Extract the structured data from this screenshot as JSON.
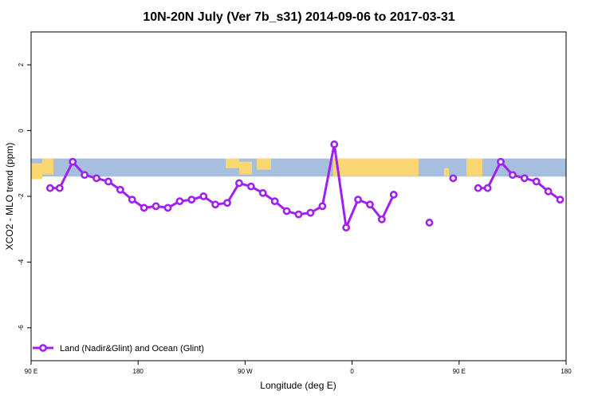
{
  "chart_data": {
    "type": "line",
    "title": "10N-20N July (Ver 7b_s31)   2014-09-06 to 2017-03-31",
    "xlabel": "Longitude (deg E)",
    "ylabel": "XCO2 - MLO trend (ppm)",
    "xlim": [
      90,
      450
    ],
    "ylim": [
      -7,
      3
    ],
    "x_ticks": [
      {
        "value": 90,
        "label": "90 E"
      },
      {
        "value": 180,
        "label": "180"
      },
      {
        "value": 270,
        "label": "90 W"
      },
      {
        "value": 360,
        "label": "0"
      },
      {
        "value": 450,
        "label": "90 E"
      },
      {
        "value": 540,
        "label": "180"
      }
    ],
    "y_ticks": [
      {
        "value": 2,
        "label": "2"
      },
      {
        "value": 0,
        "label": "0"
      },
      {
        "value": -2,
        "label": "-2"
      },
      {
        "value": -4,
        "label": "-4"
      },
      {
        "value": -6,
        "label": "-6"
      }
    ],
    "map_band": {
      "y_top": -0.85,
      "y_bottom": -1.4,
      "ocean_color": "#a7bfdf",
      "land_color": "#fbd774"
    },
    "series": [
      {
        "name": "Land (Nadir&Glint) and Ocean (Glint)",
        "color": "#a020f0",
        "segments": [
          [
            {
              "x": 106,
              "y": -1.75
            },
            {
              "x": 114,
              "y": -1.75
            },
            {
              "x": 125,
              "y": -0.95
            },
            {
              "x": 135,
              "y": -1.35
            },
            {
              "x": 145,
              "y": -1.45
            },
            {
              "x": 155,
              "y": -1.55
            },
            {
              "x": 165,
              "y": -1.8
            },
            {
              "x": 175,
              "y": -2.1
            },
            {
              "x": 185,
              "y": -2.35
            },
            {
              "x": 195,
              "y": -2.3
            },
            {
              "x": 205,
              "y": -2.35
            },
            {
              "x": 215,
              "y": -2.15
            },
            {
              "x": 225,
              "y": -2.1
            },
            {
              "x": 235,
              "y": -2.0
            },
            {
              "x": 245,
              "y": -2.25
            },
            {
              "x": 255,
              "y": -2.2
            },
            {
              "x": 265,
              "y": -1.6
            },
            {
              "x": 275,
              "y": -1.7
            },
            {
              "x": 285,
              "y": -1.9
            },
            {
              "x": 295,
              "y": -2.15
            },
            {
              "x": 305,
              "y": -2.45
            },
            {
              "x": 315,
              "y": -2.55
            },
            {
              "x": 325,
              "y": -2.5
            },
            {
              "x": 335,
              "y": -2.3
            },
            {
              "x": 345,
              "y": -0.42
            },
            {
              "x": 355,
              "y": -2.95
            },
            {
              "x": 365,
              "y": -2.1
            },
            {
              "x": 375,
              "y": -2.25
            },
            {
              "x": 385,
              "y": -2.7
            },
            {
              "x": 395,
              "y": -1.95
            }
          ],
          [
            {
              "x": 425,
              "y": -2.8
            }
          ],
          [
            {
              "x": 445,
              "y": -1.45
            }
          ],
          [
            {
              "x": 466,
              "y": -1.75
            },
            {
              "x": 474,
              "y": -1.75
            },
            {
              "x": 485,
              "y": -0.95
            },
            {
              "x": 495,
              "y": -1.35
            },
            {
              "x": 505,
              "y": -1.45
            },
            {
              "x": 515,
              "y": -1.55
            },
            {
              "x": 525,
              "y": -1.85
            },
            {
              "x": 535,
              "y": -2.1
            }
          ]
        ]
      }
    ],
    "legend": {
      "position": "bottom-left",
      "label": "Land (Nadir&Glint) and Ocean (Glint)"
    },
    "grid": false
  }
}
